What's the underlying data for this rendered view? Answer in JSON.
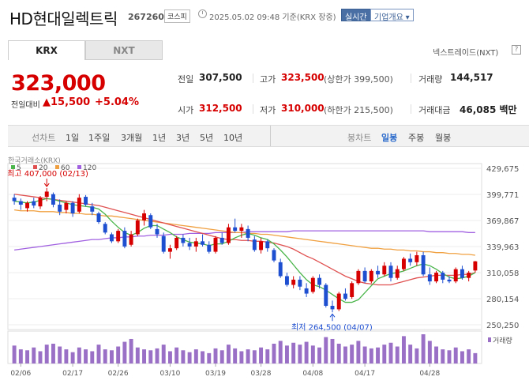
{
  "header": {
    "title": "HD현대일렉트릭",
    "code": "267260",
    "market_badge": "코스피",
    "datetime": "2025.05.02 09:48  기준(KRX 장중)",
    "realtime_button": "실시간",
    "company_button": "기업개요 ▾"
  },
  "tabs": [
    {
      "label": "KRX",
      "active": true
    },
    {
      "label": "NXT",
      "active": false
    }
  ],
  "nxt_link": "넥스트레이드(NXT)",
  "help_icon": "?",
  "quote": {
    "price": "323,000",
    "change_label": "전일대비",
    "change_value": "▲15,500",
    "change_pct": "+5.04%"
  },
  "stats": {
    "prev_close_label": "전일",
    "prev_close": "307,500",
    "high_label": "고가",
    "high": "323,500",
    "upper_limit": "(상한가 399,500)",
    "volume_label": "거래량",
    "volume": "144,517",
    "open_label": "시가",
    "open": "312,500",
    "low_label": "저가",
    "low": "310,000",
    "lower_limit": "(하한가 215,500)",
    "amount_label": "거래대금",
    "amount": "46,085 백만"
  },
  "toolbar": {
    "line_chart_label": "선차트",
    "periods": [
      "1일",
      "1주일",
      "3개월",
      "1년",
      "3년",
      "5년",
      "10년"
    ],
    "candle_chart_label": "봉차트",
    "candle_periods": [
      "일봉",
      "주봉",
      "월봉"
    ],
    "active_candle": "일봉"
  },
  "colors": {
    "up": "#d60000",
    "down": "#1f4fd1",
    "ma5": "#4ab54a",
    "ma20": "#e05050",
    "ma60": "#f0a040",
    "ma120": "#a060e0",
    "volume": "#9a6fc6"
  },
  "chart_data": {
    "type": "candlestick",
    "source_label": "한국거래소(KRX)",
    "legend": [
      {
        "name": "5"
      },
      {
        "name": "20"
      },
      {
        "name": "60"
      },
      {
        "name": "120"
      }
    ],
    "y_ticks": [
      "429,675",
      "399,771",
      "369,867",
      "339,963",
      "310,058",
      "280,154",
      "250,250"
    ],
    "ylim": [
      250250,
      429675
    ],
    "x_ticks": [
      "02/06",
      "02/17",
      "02/26",
      "03/10",
      "03/19",
      "03/28",
      "04/08",
      "04/17",
      "04/28"
    ],
    "high_annotation": "최고 407,000 (02/13)",
    "low_annotation": "최저 264,500 (04/07)",
    "volume_label": "거래량",
    "candles": [
      {
        "o": 396000,
        "h": 400000,
        "l": 388000,
        "c": 392000
      },
      {
        "o": 392000,
        "h": 395000,
        "l": 382000,
        "c": 388000
      },
      {
        "o": 384000,
        "h": 392000,
        "l": 380000,
        "c": 390000
      },
      {
        "o": 392000,
        "h": 396000,
        "l": 384000,
        "c": 387000
      },
      {
        "o": 386000,
        "h": 398000,
        "l": 383000,
        "c": 396000
      },
      {
        "o": 397000,
        "h": 407000,
        "l": 392000,
        "c": 403000
      },
      {
        "o": 400000,
        "h": 402000,
        "l": 385000,
        "c": 388000
      },
      {
        "o": 388000,
        "h": 394000,
        "l": 376000,
        "c": 380000
      },
      {
        "o": 382000,
        "h": 392000,
        "l": 378000,
        "c": 390000
      },
      {
        "o": 390000,
        "h": 392000,
        "l": 374000,
        "c": 378000
      },
      {
        "o": 380000,
        "h": 400000,
        "l": 378000,
        "c": 396000
      },
      {
        "o": 397000,
        "h": 399000,
        "l": 386000,
        "c": 388000
      },
      {
        "o": 386000,
        "h": 390000,
        "l": 376000,
        "c": 380000
      },
      {
        "o": 378000,
        "h": 380000,
        "l": 366000,
        "c": 368000
      },
      {
        "o": 366000,
        "h": 368000,
        "l": 354000,
        "c": 356000
      },
      {
        "o": 354000,
        "h": 356000,
        "l": 344000,
        "c": 346000
      },
      {
        "o": 346000,
        "h": 360000,
        "l": 344000,
        "c": 358000
      },
      {
        "o": 358000,
        "h": 362000,
        "l": 338000,
        "c": 340000
      },
      {
        "o": 342000,
        "h": 358000,
        "l": 340000,
        "c": 354000
      },
      {
        "o": 354000,
        "h": 372000,
        "l": 352000,
        "c": 370000
      },
      {
        "o": 370000,
        "h": 382000,
        "l": 364000,
        "c": 378000
      },
      {
        "o": 376000,
        "h": 378000,
        "l": 360000,
        "c": 362000
      },
      {
        "o": 360000,
        "h": 366000,
        "l": 350000,
        "c": 354000
      },
      {
        "o": 352000,
        "h": 356000,
        "l": 332000,
        "c": 334000
      },
      {
        "o": 334000,
        "h": 342000,
        "l": 326000,
        "c": 338000
      },
      {
        "o": 338000,
        "h": 352000,
        "l": 336000,
        "c": 350000
      },
      {
        "o": 350000,
        "h": 354000,
        "l": 340000,
        "c": 344000
      },
      {
        "o": 344000,
        "h": 350000,
        "l": 336000,
        "c": 340000
      },
      {
        "o": 340000,
        "h": 350000,
        "l": 334000,
        "c": 346000
      },
      {
        "o": 346000,
        "h": 354000,
        "l": 340000,
        "c": 342000
      },
      {
        "o": 342000,
        "h": 346000,
        "l": 332000,
        "c": 334000
      },
      {
        "o": 334000,
        "h": 352000,
        "l": 332000,
        "c": 350000
      },
      {
        "o": 350000,
        "h": 356000,
        "l": 342000,
        "c": 344000
      },
      {
        "o": 344000,
        "h": 366000,
        "l": 342000,
        "c": 362000
      },
      {
        "o": 362000,
        "h": 372000,
        "l": 356000,
        "c": 358000
      },
      {
        "o": 358000,
        "h": 366000,
        "l": 350000,
        "c": 362000
      },
      {
        "o": 360000,
        "h": 364000,
        "l": 346000,
        "c": 350000
      },
      {
        "o": 348000,
        "h": 352000,
        "l": 334000,
        "c": 336000
      },
      {
        "o": 336000,
        "h": 350000,
        "l": 332000,
        "c": 346000
      },
      {
        "o": 346000,
        "h": 348000,
        "l": 334000,
        "c": 338000
      },
      {
        "o": 336000,
        "h": 338000,
        "l": 322000,
        "c": 324000
      },
      {
        "o": 322000,
        "h": 326000,
        "l": 304000,
        "c": 306000
      },
      {
        "o": 306000,
        "h": 310000,
        "l": 294000,
        "c": 296000
      },
      {
        "o": 296000,
        "h": 306000,
        "l": 292000,
        "c": 302000
      },
      {
        "o": 302000,
        "h": 306000,
        "l": 290000,
        "c": 294000
      },
      {
        "o": 292000,
        "h": 298000,
        "l": 282000,
        "c": 286000
      },
      {
        "o": 288000,
        "h": 306000,
        "l": 286000,
        "c": 304000
      },
      {
        "o": 304000,
        "h": 308000,
        "l": 292000,
        "c": 296000
      },
      {
        "o": 296000,
        "h": 298000,
        "l": 270000,
        "c": 272000
      },
      {
        "o": 272000,
        "h": 278000,
        "l": 264500,
        "c": 268000
      },
      {
        "o": 268000,
        "h": 288000,
        "l": 266000,
        "c": 286000
      },
      {
        "o": 286000,
        "h": 292000,
        "l": 278000,
        "c": 280000
      },
      {
        "o": 282000,
        "h": 300000,
        "l": 280000,
        "c": 298000
      },
      {
        "o": 298000,
        "h": 314000,
        "l": 296000,
        "c": 312000
      },
      {
        "o": 312000,
        "h": 316000,
        "l": 298000,
        "c": 300000
      },
      {
        "o": 300000,
        "h": 314000,
        "l": 298000,
        "c": 312000
      },
      {
        "o": 312000,
        "h": 318000,
        "l": 304000,
        "c": 308000
      },
      {
        "o": 308000,
        "h": 322000,
        "l": 306000,
        "c": 318000
      },
      {
        "o": 318000,
        "h": 322000,
        "l": 300000,
        "c": 304000
      },
      {
        "o": 304000,
        "h": 318000,
        "l": 302000,
        "c": 314000
      },
      {
        "o": 314000,
        "h": 328000,
        "l": 312000,
        "c": 326000
      },
      {
        "o": 326000,
        "h": 332000,
        "l": 318000,
        "c": 322000
      },
      {
        "o": 322000,
        "h": 334000,
        "l": 318000,
        "c": 330000
      },
      {
        "o": 330000,
        "h": 334000,
        "l": 306000,
        "c": 308000
      },
      {
        "o": 308000,
        "h": 316000,
        "l": 296000,
        "c": 300000
      },
      {
        "o": 300000,
        "h": 312000,
        "l": 298000,
        "c": 310000
      },
      {
        "o": 310000,
        "h": 312000,
        "l": 298000,
        "c": 302000
      },
      {
        "o": 302000,
        "h": 306000,
        "l": 298000,
        "c": 300000
      },
      {
        "o": 300000,
        "h": 316000,
        "l": 298000,
        "c": 314000
      },
      {
        "o": 314000,
        "h": 318000,
        "l": 302000,
        "c": 304000
      },
      {
        "o": 304000,
        "h": 312000,
        "l": 300000,
        "c": 310000
      },
      {
        "o": 312500,
        "h": 323500,
        "l": 310000,
        "c": 323000
      }
    ],
    "volumes": [
      38,
      30,
      28,
      34,
      26,
      40,
      42,
      36,
      30,
      24,
      34,
      30,
      26,
      40,
      30,
      28,
      36,
      46,
      52,
      34,
      30,
      28,
      32,
      40,
      26,
      34,
      28,
      24,
      30,
      26,
      22,
      32,
      28,
      40,
      32,
      26,
      30,
      28,
      34,
      30,
      42,
      48,
      38,
      44,
      40,
      46,
      38,
      34,
      56,
      52,
      42,
      36,
      40,
      48,
      36,
      32,
      34,
      40,
      44,
      36,
      58,
      40,
      32,
      62,
      48,
      36,
      30,
      28,
      34,
      26,
      30,
      22
    ],
    "ma5": [
      392,
      391,
      390,
      391,
      393,
      395,
      394,
      392,
      390,
      388,
      387,
      386,
      385,
      383,
      377,
      369,
      362,
      356,
      353,
      356,
      361,
      364,
      364,
      360,
      356,
      351,
      348,
      345,
      344,
      343,
      341,
      343,
      343,
      346,
      350,
      353,
      355,
      353,
      350,
      348,
      343,
      336,
      328,
      319,
      310,
      302,
      296,
      294,
      290,
      285,
      280,
      276,
      276,
      279,
      287,
      295,
      303,
      306,
      309,
      310,
      312,
      315,
      318,
      320,
      318,
      314,
      309,
      305,
      303,
      304,
      306,
      310
    ],
    "ma20": [
      400,
      399,
      398,
      397,
      396,
      395,
      394,
      393,
      392,
      391,
      390,
      389,
      388,
      387,
      385,
      383,
      381,
      379,
      377,
      375,
      373,
      371,
      369,
      367,
      365,
      363,
      361,
      359,
      357,
      355,
      353,
      351,
      349,
      348,
      348,
      347,
      347,
      346,
      346,
      345,
      344,
      342,
      340,
      337,
      333,
      329,
      326,
      322,
      318,
      314,
      310,
      306,
      303,
      300,
      298,
      297,
      296,
      296,
      296,
      298,
      300,
      302,
      304,
      305,
      306,
      307,
      307,
      307,
      307,
      308,
      308,
      310
    ],
    "ma60": [
      382,
      381,
      381,
      381,
      380,
      380,
      380,
      379,
      379,
      378,
      378,
      377,
      377,
      376,
      375,
      375,
      374,
      373,
      372,
      371,
      370,
      369,
      368,
      367,
      366,
      365,
      364,
      363,
      362,
      361,
      360,
      359,
      358,
      357,
      356,
      356,
      355,
      355,
      354,
      354,
      353,
      352,
      351,
      350,
      349,
      348,
      347,
      346,
      345,
      344,
      343,
      342,
      341,
      340,
      339,
      338,
      338,
      337,
      337,
      336,
      336,
      335,
      335,
      334,
      334,
      333,
      333,
      332,
      332,
      331,
      331,
      330
    ],
    "ma120": [
      336,
      337,
      338,
      339,
      340,
      341,
      342,
      343,
      344,
      345,
      346,
      347,
      348,
      348,
      349,
      350,
      350,
      351,
      351,
      352,
      352,
      353,
      353,
      353,
      354,
      354,
      354,
      355,
      355,
      355,
      355,
      356,
      356,
      356,
      356,
      356,
      357,
      357,
      357,
      357,
      357,
      357,
      357,
      358,
      358,
      358,
      358,
      358,
      358,
      358,
      358,
      358,
      358,
      358,
      358,
      358,
      358,
      358,
      358,
      358,
      358,
      358,
      358,
      358,
      357,
      357,
      357,
      357,
      357,
      357,
      356,
      356
    ]
  }
}
